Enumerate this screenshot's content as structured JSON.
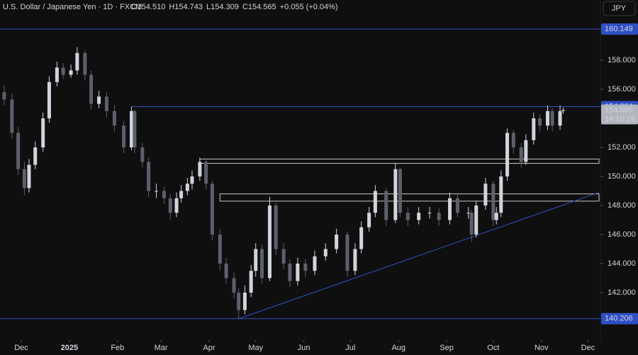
{
  "chart_data": {
    "type": "candlestick",
    "title": "U.S. Dollar / Japanese Yen · 1D · FXCM",
    "header_values": [
      "O154.510",
      "H154.743",
      "L154.309",
      "C154.565",
      "+0.055 (+0.04%)"
    ],
    "currency": "JPY",
    "countdown": "14:10:19",
    "x": [
      -11,
      -6,
      -2,
      2,
      5,
      9,
      14,
      18,
      23,
      27,
      32,
      36,
      41,
      45,
      50,
      55,
      60,
      66,
      71,
      73,
      78,
      82,
      87,
      92,
      96,
      100,
      103,
      107,
      110,
      115,
      119,
      123,
      128,
      132,
      137,
      140,
      144,
      148,
      151,
      155,
      160,
      164,
      169,
      173,
      178,
      183,
      189,
      196,
      203,
      210,
      215,
      219,
      224,
      228,
      235,
      241,
      244,
      249,
      256,
      263,
      269,
      276,
      281,
      288,
      290,
      293,
      299,
      304,
      306,
      309,
      313,
      317,
      322,
      325,
      330,
      334,
      339,
      342,
      347,
      349
    ],
    "open": [
      155.8,
      155.3,
      153.0,
      150.5,
      149.2,
      150.8,
      152.0,
      154.0,
      156.5,
      157.5,
      157.0,
      157.3,
      158.5,
      157.0,
      155.0,
      155.5,
      154.5,
      153.5,
      152.0,
      154.5,
      152.0,
      151.0,
      149.0,
      149.0,
      148.5,
      147.5,
      148.5,
      149.0,
      149.5,
      150.0,
      151.0,
      149.5,
      146.0,
      144.0,
      143.0,
      142.0,
      140.8,
      142.0,
      143.5,
      145.0,
      143.0,
      148.0,
      145.0,
      144.0,
      142.8,
      144.0,
      143.5,
      144.5,
      145.0,
      146.0,
      143.5,
      145.0,
      146.5,
      147.5,
      149.0,
      147.0,
      150.5,
      147.5,
      147.0,
      147.5,
      147.5,
      147.0,
      148.5,
      147.5,
      147.5,
      146.0,
      148.0,
      149.5,
      147.0,
      147.5,
      150.0,
      153.0,
      152.0,
      151.0,
      152.5,
      154.0,
      153.5,
      154.5,
      153.5,
      154.51
    ],
    "high": [
      156.3,
      155.7,
      153.4,
      151.0,
      151.2,
      152.4,
      154.4,
      156.9,
      157.9,
      157.8,
      157.7,
      158.9,
      158.7,
      157.3,
      155.9,
      155.8,
      154.9,
      153.8,
      154.8,
      154.6,
      152.3,
      151.3,
      149.5,
      149.3,
      148.8,
      148.9,
      149.4,
      149.9,
      150.4,
      151.3,
      151.2,
      149.7,
      146.4,
      144.4,
      143.4,
      142.3,
      142.5,
      143.9,
      145.4,
      145.3,
      148.6,
      148.2,
      145.4,
      144.3,
      144.4,
      144.3,
      144.9,
      145.4,
      146.4,
      146.2,
      145.4,
      146.9,
      147.9,
      149.4,
      149.2,
      150.9,
      150.6,
      147.9,
      147.9,
      147.9,
      147.8,
      148.9,
      148.8,
      147.9,
      147.7,
      148.3,
      149.9,
      149.7,
      147.9,
      150.4,
      153.3,
      153.2,
      152.3,
      152.9,
      154.4,
      154.3,
      154.9,
      154.7,
      154.9,
      154.743
    ],
    "low": [
      154.9,
      152.6,
      150.1,
      148.7,
      148.9,
      150.5,
      151.7,
      153.7,
      156.2,
      156.7,
      156.8,
      157.0,
      156.6,
      154.6,
      154.7,
      154.1,
      153.1,
      151.6,
      151.8,
      151.6,
      150.6,
      148.6,
      148.5,
      148.1,
      147.0,
      147.2,
      148.2,
      148.7,
      149.1,
      149.7,
      149.1,
      145.6,
      143.5,
      142.6,
      141.6,
      140.2,
      140.5,
      141.7,
      143.1,
      142.6,
      142.8,
      144.6,
      143.6,
      142.4,
      142.5,
      143.1,
      143.2,
      144.2,
      144.7,
      143.1,
      143.2,
      144.7,
      146.2,
      147.2,
      146.6,
      146.8,
      147.2,
      146.6,
      146.7,
      147.1,
      146.6,
      146.7,
      147.2,
      147.1,
      145.5,
      145.8,
      147.7,
      146.6,
      146.7,
      147.2,
      149.7,
      151.6,
      150.6,
      150.8,
      152.2,
      153.1,
      153.2,
      153.1,
      153.2,
      154.309
    ],
    "close": [
      155.3,
      153.0,
      150.5,
      149.2,
      150.8,
      152.0,
      154.0,
      156.5,
      157.5,
      157.0,
      157.3,
      158.5,
      157.0,
      155.0,
      155.5,
      154.5,
      153.5,
      152.0,
      154.5,
      152.0,
      151.0,
      149.0,
      149.0,
      148.5,
      147.5,
      148.5,
      149.0,
      149.5,
      150.0,
      151.0,
      149.5,
      146.0,
      144.0,
      143.0,
      142.0,
      140.8,
      142.0,
      143.5,
      145.0,
      143.0,
      148.0,
      145.0,
      144.0,
      142.8,
      144.0,
      143.5,
      144.5,
      145.0,
      146.0,
      143.5,
      145.0,
      146.5,
      147.5,
      149.0,
      147.0,
      150.5,
      147.5,
      147.0,
      147.5,
      147.5,
      147.0,
      148.5,
      147.5,
      147.5,
      146.0,
      148.0,
      149.5,
      147.0,
      147.5,
      150.0,
      153.0,
      152.0,
      151.0,
      152.5,
      154.0,
      153.5,
      154.5,
      153.5,
      154.5,
      154.565
    ],
    "up_color": "#d1d4dc",
    "down_color": "#5d606b",
    "xlim": [
      -13.7,
      372.1
    ],
    "ylim": [
      138.73,
      162.15
    ],
    "xticks": [
      {
        "value": 0,
        "label": "Dec"
      },
      {
        "value": 31,
        "label": "2025"
      },
      {
        "value": 62,
        "label": "Feb"
      },
      {
        "value": 90,
        "label": "Mar"
      },
      {
        "value": 121,
        "label": "Apr"
      },
      {
        "value": 151,
        "label": "May"
      },
      {
        "value": 182,
        "label": "Jun"
      },
      {
        "value": 212,
        "label": "Jul"
      },
      {
        "value": 243,
        "label": "Aug"
      },
      {
        "value": 274,
        "label": "Sep"
      },
      {
        "value": 304,
        "label": "Oct"
      },
      {
        "value": 335,
        "label": "Nov"
      },
      {
        "value": 365,
        "label": "Dec"
      }
    ],
    "yticks": [
      {
        "value": 142,
        "label": "142.000"
      },
      {
        "value": 144,
        "label": "144.000"
      },
      {
        "value": 146,
        "label": "146.000"
      },
      {
        "value": 148,
        "label": "148.000"
      },
      {
        "value": 150,
        "label": "150.000"
      },
      {
        "value": 152,
        "label": "152.000"
      },
      {
        "value": 156,
        "label": "156.000"
      },
      {
        "value": 158,
        "label": "158.000"
      }
    ],
    "levels": [
      {
        "value": 160.149,
        "x_start": -13.7
      },
      {
        "value": 154.804,
        "x_start": 71
      },
      {
        "value": 140.206,
        "x_start": -13.7
      }
    ],
    "last_price": 154.565,
    "zones": [
      {
        "x_start": 115,
        "low": 150.9,
        "high": 151.2
      },
      {
        "x_start": 128,
        "low": 148.3,
        "high": 148.8
      }
    ],
    "trendline": {
      "x": [
        140,
        372.1
      ],
      "y": [
        140.2,
        148.9
      ]
    },
    "level_color": "#2f4fc4"
  }
}
